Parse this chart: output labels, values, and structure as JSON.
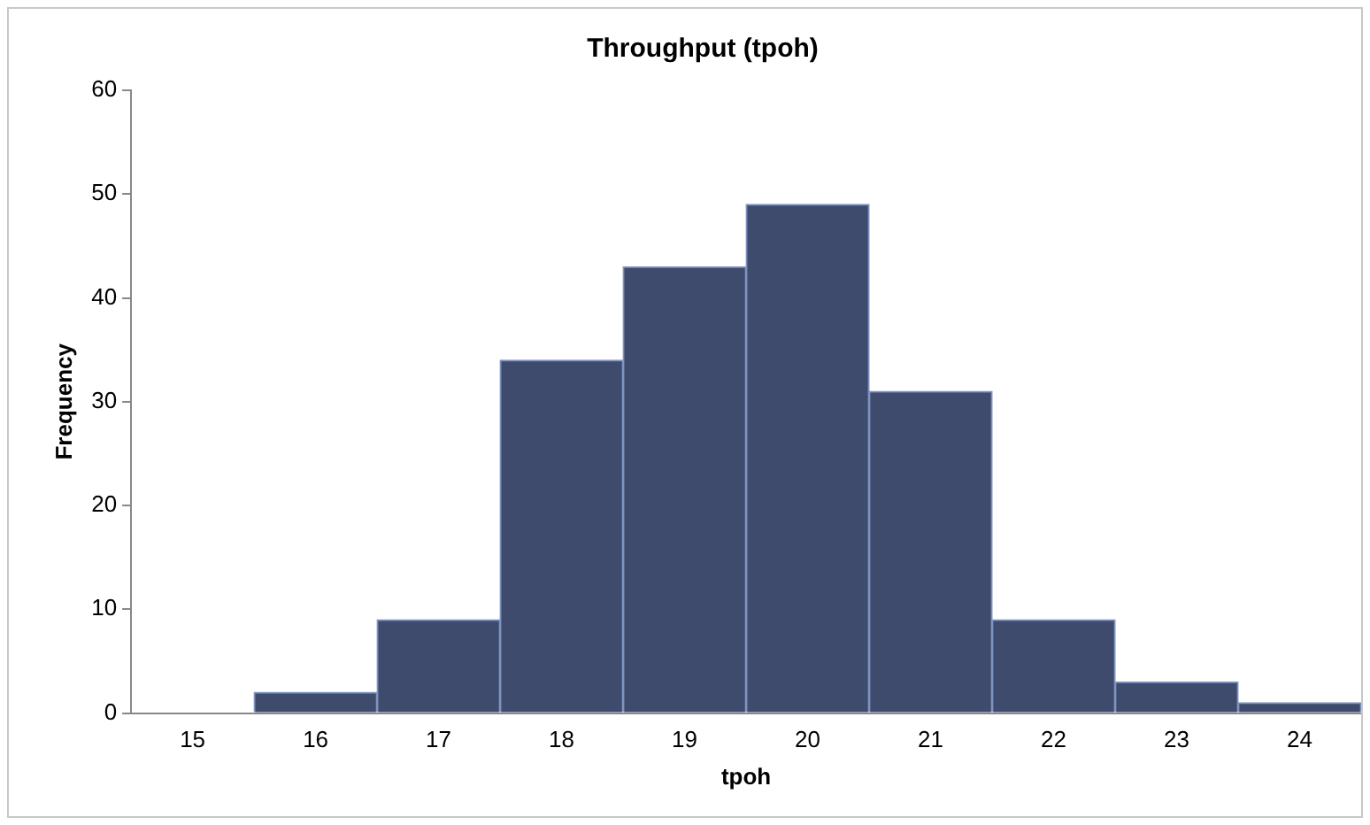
{
  "chart_data": {
    "type": "bar",
    "title": "Throughput (tpoh)",
    "xlabel": "tpoh",
    "ylabel": "Frequency",
    "categories": [
      "15",
      "16",
      "17",
      "18",
      "19",
      "20",
      "21",
      "22",
      "23",
      "24"
    ],
    "values": [
      0,
      2,
      9,
      34,
      43,
      49,
      31,
      9,
      3,
      1
    ],
    "color": "#3e4b6d",
    "ylim": [
      0,
      60
    ],
    "yticks": [
      0,
      10,
      20,
      30,
      40,
      50,
      60
    ],
    "grid": false,
    "legend": false
  }
}
